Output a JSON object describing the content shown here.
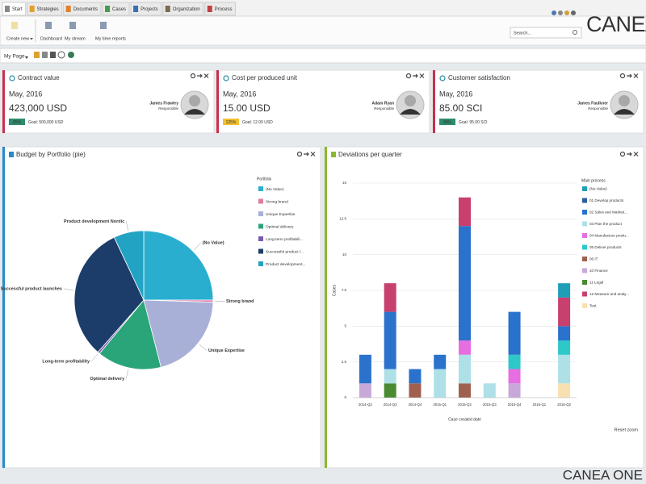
{
  "tabs": [
    "Start",
    "Strategies",
    "Documents",
    "Cases",
    "Projects",
    "Organization",
    "Process"
  ],
  "ribbon": [
    "Create new",
    "Dashboard",
    "My stream",
    "My time reports"
  ],
  "search_placeholder": "Search...",
  "logo": "CANEA",
  "page_selector": "My Page",
  "kpi_cards": [
    {
      "title": "Contract value",
      "period": "May, 2016",
      "value": "423,000 USD",
      "person": "James Frawley",
      "role": "Responsible",
      "badge": "85%",
      "badge_color": "#2e8b6e",
      "goal": "Goal: 500,000 USD"
    },
    {
      "title": "Cost per produced unit",
      "period": "May, 2016",
      "value": "15.00 USD",
      "person": "Adam Ryan",
      "role": "Responsible",
      "badge": "125%",
      "badge_color": "#f0c030",
      "goal": "Goal: 12.00 USD"
    },
    {
      "title": "Customer satisfaction",
      "period": "May, 2016",
      "value": "85.00 SCI",
      "person": "James Faulkner",
      "role": "Responsible",
      "badge": "89%",
      "badge_color": "#2e8b6e",
      "goal": "Goal: 95.00 SCI"
    }
  ],
  "panels": [
    "Budget by Portfolio (pie)",
    "Deviations per quarter"
  ],
  "reset_zoom": "Reset zoom",
  "footer": "CANEA ONE",
  "chart_data": [
    {
      "type": "pie",
      "categories": [
        "(No Value)",
        "Strong brand",
        "Unique Expertise",
        "Optimal delivery",
        "Long-term profitability",
        "Successful product launches",
        "Product development Nordic"
      ],
      "values": [
        25,
        0.5,
        20.5,
        15,
        0.5,
        31.5,
        7
      ],
      "colors": [
        "#2aaed0",
        "#e07aa0",
        "#a8b0d8",
        "#2aa57a",
        "#7a5ab0",
        "#1c3d6a",
        "#23a3c3"
      ],
      "legend_title": "Portfolio",
      "legend_labels": [
        "(No Value)",
        "Strong brand",
        "Unique Expertise",
        "Optimal delivery",
        "Long-term profitabili...",
        "Successful product l...",
        "Product development..."
      ]
    },
    {
      "type": "bar",
      "stacked": true,
      "grid": true,
      "categories": [
        "2014-Q2",
        "2014-Q3",
        "2014-Q4",
        "2015-Q1",
        "2015-Q2",
        "2015-Q3",
        "2015-Q4",
        "2016-Q1",
        "2016-Q2"
      ],
      "ylim": [
        0,
        15
      ],
      "yticks": [
        0,
        2.5,
        5,
        7.5,
        10,
        12.5,
        15
      ],
      "ylabel": "Cases",
      "xlabel": "Case created date",
      "legend_title": "Main process",
      "series": [
        {
          "name": "(No Value)",
          "color": "#1f9eb8",
          "values": [
            0,
            0,
            0,
            0,
            0,
            0,
            0,
            0,
            1
          ]
        },
        {
          "name": "01 Develop products",
          "color": "#2d5e9e",
          "values": [
            0,
            0,
            0,
            0,
            0,
            0,
            0,
            0,
            0
          ]
        },
        {
          "name": "02 Sales and Marketi...",
          "color": "#2a72cc",
          "values": [
            2,
            4,
            1,
            1,
            8,
            0,
            3,
            0,
            1
          ]
        },
        {
          "name": "03 Plan the product",
          "color": "#aee0e8",
          "values": [
            0,
            1,
            0,
            2,
            2,
            1,
            0,
            0,
            2
          ]
        },
        {
          "name": "04 Manufacture produ...",
          "color": "#e66ee0",
          "values": [
            0,
            0,
            0,
            0,
            1,
            0,
            1,
            0,
            0
          ]
        },
        {
          "name": "05 Deliver products",
          "color": "#2ec8c8",
          "values": [
            0,
            0,
            0,
            0,
            0,
            0,
            1,
            0,
            1
          ]
        },
        {
          "name": "06 IT",
          "color": "#a06050",
          "values": [
            0,
            0,
            1,
            0,
            1,
            0,
            0,
            0,
            0
          ]
        },
        {
          "name": "10 Finance",
          "color": "#c8a8d8",
          "values": [
            1,
            0,
            0,
            0,
            0,
            0,
            1,
            0,
            0
          ]
        },
        {
          "name": "11 Legal",
          "color": "#4a8a30",
          "values": [
            0,
            1,
            0,
            0,
            0,
            0,
            0,
            0,
            0
          ]
        },
        {
          "name": "12 Measure and analy...",
          "color": "#c8406e",
          "values": [
            0,
            2,
            0,
            0,
            2,
            0,
            0,
            0,
            2
          ]
        },
        {
          "name": "Test",
          "color": "#f8e0b0",
          "values": [
            0,
            0,
            0,
            0,
            0,
            0,
            0,
            0,
            1
          ]
        }
      ]
    }
  ]
}
